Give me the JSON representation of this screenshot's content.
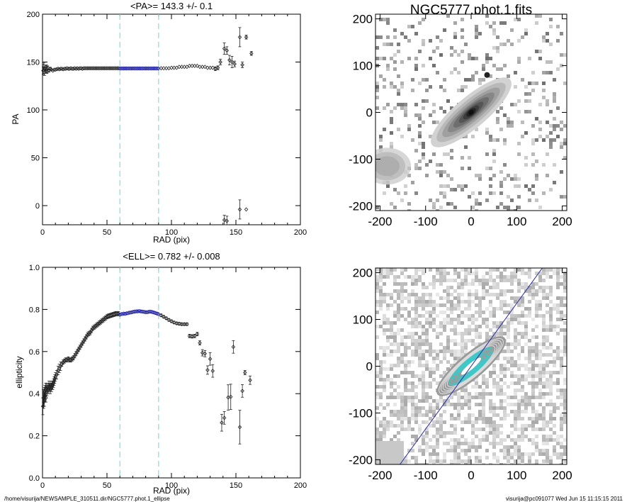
{
  "footer": {
    "path": "/home/visurija/NEWSAMPLE_310511.dir/NGC5777.phot.1_ellipse",
    "user_time": "visurija@pc091077  Wed Jun 15 11:15:15 2011"
  },
  "colors": {
    "axis": "#000000",
    "fit_marker": "#1a1aa0",
    "fit_range": "#7fe0e0",
    "cyan_contour": "#3ec9c9",
    "major_axis_line": "#2a2aaa"
  },
  "chart_data": [
    {
      "id": "pa",
      "type": "scatter",
      "title": "<PA>= 143.3 +/-   0.1",
      "xlabel": "RAD (pix)",
      "ylabel": "PA",
      "xlim": [
        0,
        200
      ],
      "ylim": [
        -20,
        200
      ],
      "xticks": [
        0,
        50,
        100,
        150,
        200
      ],
      "yticks": [
        0,
        50,
        100,
        150,
        200
      ],
      "fit_range": [
        60,
        90
      ],
      "mean": 143.3,
      "grid": false,
      "points": [
        [
          0.5,
          141,
          4
        ],
        [
          1,
          146,
          3
        ],
        [
          1.5,
          139,
          3
        ],
        [
          2,
          143,
          2
        ],
        [
          2.5,
          141,
          2
        ],
        [
          3,
          145,
          2
        ],
        [
          3.5,
          140,
          2
        ],
        [
          4,
          144,
          2
        ],
        [
          5,
          141,
          1.5
        ],
        [
          6,
          143,
          1.5
        ],
        [
          7,
          142,
          1
        ],
        [
          8,
          141,
          1
        ],
        [
          9,
          142,
          1
        ],
        [
          10,
          142,
          1
        ],
        [
          11,
          142.5,
          1
        ],
        [
          12,
          143,
          1
        ],
        [
          13,
          142.5,
          1
        ],
        [
          14,
          143,
          1
        ],
        [
          15,
          143,
          1
        ],
        [
          16,
          142.5,
          1
        ],
        [
          17,
          143,
          1
        ],
        [
          18,
          143,
          1
        ],
        [
          19,
          143.5,
          1
        ],
        [
          20,
          143,
          1
        ],
        [
          21,
          143,
          1
        ],
        [
          22,
          143.5,
          1
        ],
        [
          23,
          143,
          1
        ],
        [
          24,
          143,
          1
        ],
        [
          25,
          143.5,
          1
        ],
        [
          26,
          143,
          1
        ],
        [
          27,
          143.5,
          1
        ],
        [
          28,
          143,
          1
        ],
        [
          29,
          143.5,
          1
        ],
        [
          30,
          143.5,
          1
        ],
        [
          31,
          143,
          1
        ],
        [
          32,
          143.5,
          1
        ],
        [
          33,
          143.5,
          1
        ],
        [
          34,
          143.5,
          1
        ],
        [
          35,
          143.5,
          1
        ],
        [
          36,
          143.5,
          1
        ],
        [
          37,
          143.5,
          1
        ],
        [
          38,
          143.5,
          1
        ],
        [
          39,
          143.5,
          1
        ],
        [
          40,
          143.5,
          1
        ],
        [
          41,
          143.5,
          1
        ],
        [
          42,
          143.5,
          1
        ],
        [
          43,
          143.5,
          1
        ],
        [
          44,
          143.5,
          1
        ],
        [
          45,
          143.5,
          1
        ],
        [
          46,
          143.5,
          1
        ],
        [
          47,
          143.5,
          1
        ],
        [
          48,
          143.5,
          1
        ],
        [
          49,
          143.5,
          1
        ],
        [
          50,
          143.5,
          1
        ],
        [
          51,
          143.5,
          1
        ],
        [
          52,
          143.5,
          1
        ],
        [
          53,
          143.5,
          1
        ],
        [
          54,
          143.5,
          1
        ],
        [
          55,
          143.5,
          1
        ],
        [
          56,
          143.5,
          1
        ],
        [
          57,
          143.5,
          1
        ],
        [
          58,
          143.5,
          1
        ],
        [
          59,
          143.5,
          1
        ],
        [
          60,
          143.3,
          0.5
        ],
        [
          61,
          143.3,
          0.5
        ],
        [
          62,
          143.3,
          0.5
        ],
        [
          63,
          143.3,
          0.5
        ],
        [
          64,
          143.3,
          0.5
        ],
        [
          65,
          143.3,
          0.5
        ],
        [
          66,
          143.3,
          0.5
        ],
        [
          67,
          143.3,
          0.5
        ],
        [
          68,
          143.3,
          0.5
        ],
        [
          69,
          143.3,
          0.5
        ],
        [
          70,
          143.3,
          0.5
        ],
        [
          71,
          143.3,
          0.5
        ],
        [
          72,
          143.3,
          0.5
        ],
        [
          73,
          143.3,
          0.5
        ],
        [
          74,
          143.3,
          0.5
        ],
        [
          75,
          143.3,
          0.5
        ],
        [
          76,
          143.3,
          0.5
        ],
        [
          77,
          143.3,
          0.5
        ],
        [
          78,
          143.3,
          0.5
        ],
        [
          79,
          143.3,
          0.5
        ],
        [
          80,
          143.3,
          0.5
        ],
        [
          81,
          143.3,
          0.5
        ],
        [
          82,
          143.3,
          0.5
        ],
        [
          83,
          143.3,
          0.5
        ],
        [
          84,
          143.3,
          0.5
        ],
        [
          85,
          143.3,
          0.5
        ],
        [
          86,
          143.3,
          0.5
        ],
        [
          87,
          143.3,
          0.5
        ],
        [
          88,
          143.3,
          0.5
        ],
        [
          89,
          143.3,
          0.5
        ],
        [
          90,
          143.3,
          0.5
        ],
        [
          92,
          143.5,
          1
        ],
        [
          94,
          143.5,
          1
        ],
        [
          96,
          143.5,
          1
        ],
        [
          98,
          143.5,
          1
        ],
        [
          100,
          144,
          1
        ],
        [
          102,
          144,
          1
        ],
        [
          104,
          144,
          1
        ],
        [
          106,
          145,
          1
        ],
        [
          108,
          145,
          1
        ],
        [
          110,
          145,
          1
        ],
        [
          112,
          145,
          1
        ],
        [
          114,
          146,
          1
        ],
        [
          116,
          146,
          1
        ],
        [
          118,
          146,
          1
        ],
        [
          120,
          146,
          1
        ],
        [
          122,
          145,
          1
        ],
        [
          124,
          145,
          1
        ],
        [
          126,
          145,
          1
        ],
        [
          128,
          144,
          1
        ],
        [
          130,
          144,
          1
        ],
        [
          132,
          144,
          1
        ],
        [
          134,
          143,
          2
        ],
        [
          136,
          144,
          2
        ],
        [
          138,
          150,
          3
        ],
        [
          141,
          164,
          6
        ],
        [
          143,
          162,
          4
        ],
        [
          145,
          152,
          5
        ],
        [
          147,
          150,
          6
        ],
        [
          149,
          148,
          3
        ],
        [
          153,
          176,
          10
        ],
        [
          155,
          147,
          3
        ],
        [
          158,
          176,
          2
        ],
        [
          162,
          159,
          2
        ],
        [
          141,
          -15,
          5
        ],
        [
          143,
          -16,
          5
        ],
        [
          153,
          -4,
          10
        ],
        [
          158,
          -4,
          1
        ]
      ]
    },
    {
      "id": "ell",
      "type": "scatter",
      "title": "<ELL>= 0.782 +/-  0.008",
      "xlabel": "RAD (pix)",
      "ylabel": "ellipticity",
      "xlim": [
        0,
        200
      ],
      "ylim": [
        0.0,
        1.0
      ],
      "xticks": [
        0,
        50,
        100,
        150,
        200
      ],
      "yticks": [
        0.0,
        0.2,
        0.4,
        0.6,
        0.8,
        1.0
      ],
      "fit_range": [
        60,
        90
      ],
      "mean": 0.782,
      "grid": false,
      "points": [
        [
          0.3,
          0.34,
          0.04
        ],
        [
          0.6,
          0.38,
          0.04
        ],
        [
          0.9,
          0.36,
          0.03
        ],
        [
          1.2,
          0.4,
          0.03
        ],
        [
          1.5,
          0.37,
          0.03
        ],
        [
          1.8,
          0.41,
          0.03
        ],
        [
          2.1,
          0.39,
          0.03
        ],
        [
          2.4,
          0.42,
          0.03
        ],
        [
          2.7,
          0.38,
          0.02
        ],
        [
          3,
          0.43,
          0.02
        ],
        [
          3.5,
          0.41,
          0.02
        ],
        [
          4,
          0.43,
          0.02
        ],
        [
          4.5,
          0.42,
          0.02
        ],
        [
          5,
          0.44,
          0.02
        ],
        [
          5.5,
          0.43,
          0.02
        ],
        [
          6,
          0.42,
          0.02
        ],
        [
          6.5,
          0.44,
          0.02
        ],
        [
          7,
          0.43,
          0.02
        ],
        [
          7.5,
          0.44,
          0.02
        ],
        [
          8,
          0.44,
          0.02
        ],
        [
          8.5,
          0.45,
          0.02
        ],
        [
          9,
          0.46,
          0.02
        ],
        [
          9.5,
          0.47,
          0.02
        ],
        [
          10,
          0.48,
          0.02
        ],
        [
          11,
          0.49,
          0.02
        ],
        [
          12,
          0.51,
          0.02
        ],
        [
          13,
          0.52,
          0.02
        ],
        [
          14,
          0.53,
          0.02
        ],
        [
          15,
          0.54,
          0.01
        ],
        [
          16,
          0.55,
          0.01
        ],
        [
          17,
          0.555,
          0.01
        ],
        [
          18,
          0.56,
          0.01
        ],
        [
          19,
          0.56,
          0.01
        ],
        [
          20,
          0.565,
          0.01
        ],
        [
          21,
          0.56,
          0.01
        ],
        [
          22,
          0.56,
          0.01
        ],
        [
          23,
          0.565,
          0.01
        ],
        [
          24,
          0.57,
          0.01
        ],
        [
          25,
          0.58,
          0.01
        ],
        [
          26,
          0.59,
          0.01
        ],
        [
          27,
          0.6,
          0.01
        ],
        [
          28,
          0.61,
          0.01
        ],
        [
          29,
          0.62,
          0.01
        ],
        [
          30,
          0.63,
          0.01
        ],
        [
          31,
          0.64,
          0.01
        ],
        [
          32,
          0.65,
          0.01
        ],
        [
          33,
          0.66,
          0.01
        ],
        [
          34,
          0.67,
          0.01
        ],
        [
          35,
          0.68,
          0.01
        ],
        [
          36,
          0.685,
          0.01
        ],
        [
          37,
          0.69,
          0.01
        ],
        [
          38,
          0.7,
          0.01
        ],
        [
          39,
          0.71,
          0.01
        ],
        [
          40,
          0.715,
          0.01
        ],
        [
          41,
          0.72,
          0.01
        ],
        [
          42,
          0.725,
          0.01
        ],
        [
          43,
          0.73,
          0.01
        ],
        [
          44,
          0.735,
          0.01
        ],
        [
          45,
          0.74,
          0.01
        ],
        [
          46,
          0.745,
          0.01
        ],
        [
          47,
          0.75,
          0.01
        ],
        [
          48,
          0.755,
          0.01
        ],
        [
          49,
          0.76,
          0.01
        ],
        [
          50,
          0.765,
          0.01
        ],
        [
          51,
          0.768,
          0.01
        ],
        [
          52,
          0.77,
          0.01
        ],
        [
          53,
          0.772,
          0.01
        ],
        [
          54,
          0.774,
          0.01
        ],
        [
          55,
          0.776,
          0.01
        ],
        [
          56,
          0.778,
          0.01
        ],
        [
          57,
          0.78,
          0.01
        ],
        [
          58,
          0.78,
          0.01
        ],
        [
          59,
          0.78,
          0.01
        ],
        [
          60,
          0.775,
          0.005
        ],
        [
          61,
          0.778,
          0.005
        ],
        [
          62,
          0.778,
          0.005
        ],
        [
          63,
          0.78,
          0.005
        ],
        [
          64,
          0.779,
          0.005
        ],
        [
          65,
          0.781,
          0.005
        ],
        [
          66,
          0.782,
          0.005
        ],
        [
          67,
          0.784,
          0.005
        ],
        [
          68,
          0.785,
          0.005
        ],
        [
          69,
          0.786,
          0.005
        ],
        [
          70,
          0.788,
          0.005
        ],
        [
          71,
          0.789,
          0.005
        ],
        [
          72,
          0.79,
          0.005
        ],
        [
          73,
          0.791,
          0.005
        ],
        [
          74,
          0.791,
          0.005
        ],
        [
          75,
          0.792,
          0.005
        ],
        [
          76,
          0.791,
          0.005
        ],
        [
          77,
          0.79,
          0.005
        ],
        [
          78,
          0.789,
          0.005
        ],
        [
          79,
          0.788,
          0.005
        ],
        [
          80,
          0.787,
          0.005
        ],
        [
          81,
          0.787,
          0.005
        ],
        [
          82,
          0.788,
          0.005
        ],
        [
          83,
          0.789,
          0.005
        ],
        [
          84,
          0.789,
          0.005
        ],
        [
          85,
          0.788,
          0.005
        ],
        [
          86,
          0.786,
          0.005
        ],
        [
          87,
          0.784,
          0.005
        ],
        [
          88,
          0.782,
          0.005
        ],
        [
          89,
          0.78,
          0.005
        ],
        [
          90,
          0.778,
          0.005
        ],
        [
          92,
          0.772,
          0.006
        ],
        [
          94,
          0.765,
          0.006
        ],
        [
          96,
          0.758,
          0.006
        ],
        [
          98,
          0.75,
          0.006
        ],
        [
          100,
          0.744,
          0.006
        ],
        [
          102,
          0.738,
          0.006
        ],
        [
          104,
          0.734,
          0.006
        ],
        [
          106,
          0.732,
          0.006
        ],
        [
          108,
          0.73,
          0.006
        ],
        [
          110,
          0.73,
          0.006
        ],
        [
          112,
          0.73,
          0.006
        ],
        [
          114,
          0.674,
          0.008
        ],
        [
          116,
          0.672,
          0.008
        ],
        [
          118,
          0.674,
          0.008
        ],
        [
          120,
          0.683,
          0.008
        ],
        [
          122,
          0.641,
          0.01
        ],
        [
          124,
          0.594,
          0.015
        ],
        [
          126,
          0.59,
          0.015
        ],
        [
          128,
          0.512,
          0.02
        ],
        [
          130,
          0.565,
          0.03
        ],
        [
          132,
          0.508,
          0.03
        ],
        [
          139,
          0.262,
          0.04
        ],
        [
          141,
          0.285,
          0.03
        ],
        [
          144,
          0.382,
          0.06
        ],
        [
          146,
          0.385,
          0.06
        ],
        [
          148,
          0.622,
          0.03
        ],
        [
          153,
          0.241,
          0.08
        ],
        [
          155,
          0.413,
          0.03
        ],
        [
          157,
          0.5,
          0.01
        ],
        [
          161,
          0.464,
          0.02
        ]
      ]
    },
    {
      "id": "img",
      "type": "heatmap",
      "title": "NGC5777.phot.1.fits",
      "xlim": [
        -210,
        210
      ],
      "ylim": [
        -210,
        210
      ],
      "xticks": [
        -200,
        -100,
        0,
        100,
        200
      ],
      "yticks": [
        -200,
        -100,
        0,
        100,
        200
      ]
    },
    {
      "id": "model",
      "type": "heatmap",
      "title": "",
      "xlim": [
        -210,
        210
      ],
      "ylim": [
        -210,
        210
      ],
      "xticks": [
        -200,
        -100,
        0,
        100,
        200
      ],
      "yticks": [
        -200,
        -100,
        0,
        100,
        200
      ],
      "pa": 143.3,
      "ellipticity": 0.782
    }
  ]
}
